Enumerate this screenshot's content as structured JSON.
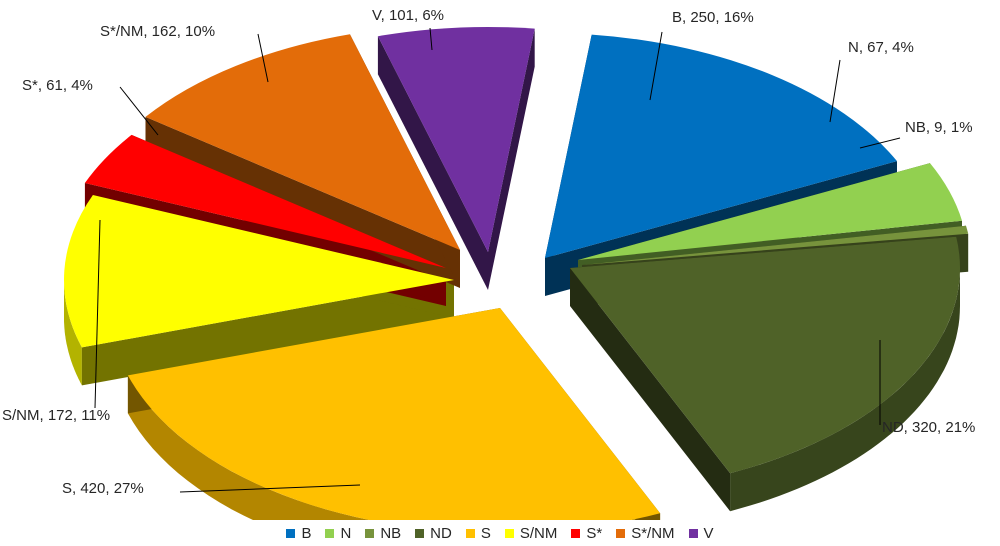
{
  "chart_data": {
    "type": "pie",
    "style": "3d-exploded",
    "slices": [
      {
        "label": "B",
        "value": 250,
        "percent": "16%",
        "color": "#0070C0",
        "data_label": "B, 250, 16%"
      },
      {
        "label": "N",
        "value": 67,
        "percent": "4%",
        "color": "#92D050",
        "data_label": "N, 67, 4%"
      },
      {
        "label": "NB",
        "value": 9,
        "percent": "1%",
        "color": "#77933C",
        "data_label": "NB, 9, 1%"
      },
      {
        "label": "ND",
        "value": 320,
        "percent": "21%",
        "color": "#4F6228",
        "data_label": "ND, 320, 21%"
      },
      {
        "label": "S",
        "value": 420,
        "percent": "27%",
        "color": "#FFC000",
        "data_label": "S, 420, 27%"
      },
      {
        "label": "S/NM",
        "value": 172,
        "percent": "11%",
        "color": "#FFFF00",
        "data_label": "S/NM, 172, 11%"
      },
      {
        "label": "S*",
        "value": 61,
        "percent": "4%",
        "color": "#FF0000",
        "data_label": "S*, 61, 4%"
      },
      {
        "label": "S*/NM",
        "value": 162,
        "percent": "10%",
        "color": "#E36C09",
        "data_label": "S*/NM, 162, 10%"
      },
      {
        "label": "V",
        "value": 101,
        "percent": "6%",
        "color": "#7030A0",
        "data_label": "V, 101, 6%"
      }
    ],
    "legend_position": "bottom",
    "title": ""
  }
}
